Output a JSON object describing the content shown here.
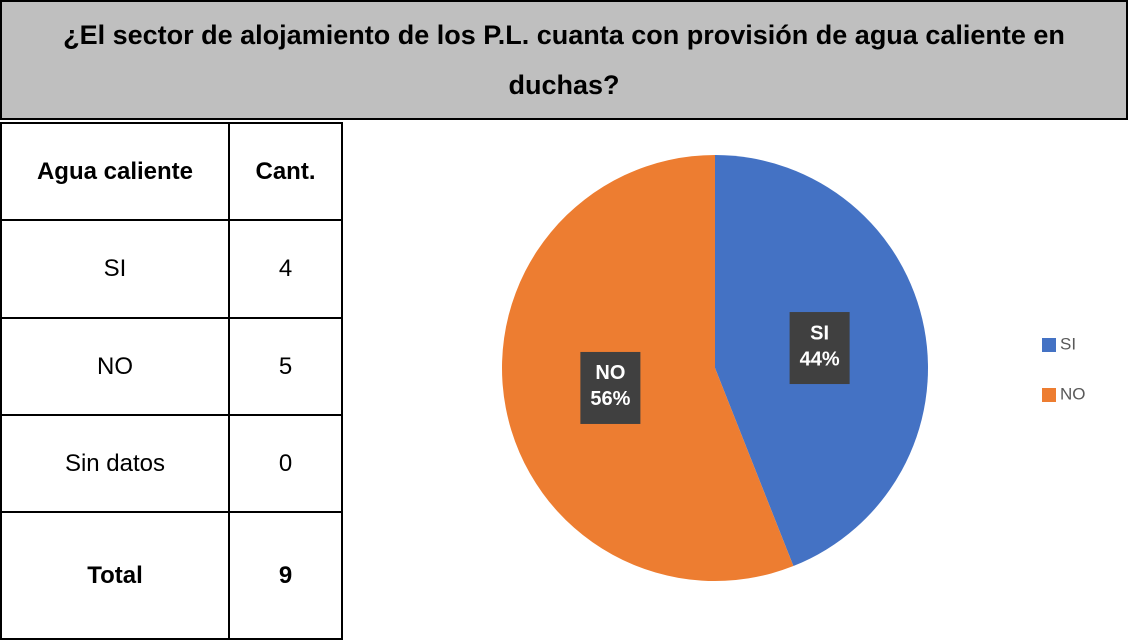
{
  "title": "¿El sector de alojamiento de los P.L. cuanta con provisión de agua caliente en duchas?",
  "table": {
    "header": [
      "Agua caliente",
      "Cant."
    ],
    "rows": [
      [
        "SI",
        "4"
      ],
      [
        "NO",
        "5"
      ],
      [
        "Sin datos",
        "0"
      ],
      [
        "Total",
        "9"
      ]
    ]
  },
  "chart_data": {
    "type": "pie",
    "categories": [
      "SI",
      "NO"
    ],
    "values": [
      44,
      56
    ],
    "value_labels": [
      "44%",
      "56%"
    ],
    "colors": [
      "#4472c4",
      "#ed7d31"
    ],
    "legend": "right"
  }
}
